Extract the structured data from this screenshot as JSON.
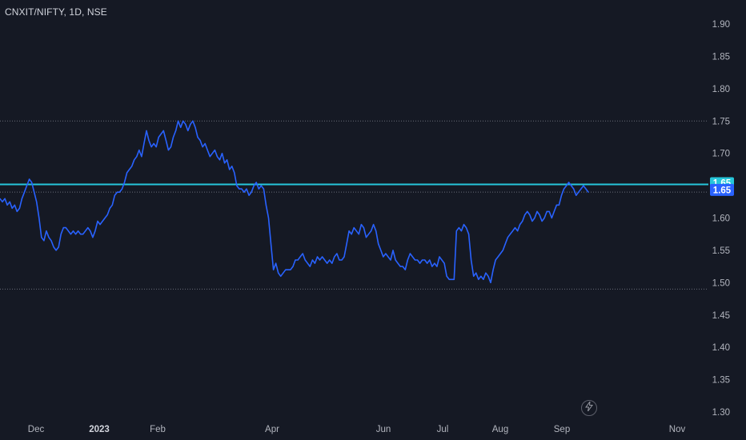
{
  "header": {
    "symbol_title": "CNXIT/NIFTY, 1D, NSE"
  },
  "colors": {
    "background": "#151924",
    "series_line": "#2962ff",
    "horizontal_line": "#26c6da",
    "price_label_bg": "#2962ff",
    "level_label_bg": "#26c6da",
    "grid_dotted": "#6a6d78",
    "axis_text": "#b2b5be"
  },
  "icons": {
    "replay_button": "lightning-bolt-icon"
  },
  "chart_data": {
    "type": "line",
    "title": "CNXIT/NIFTY, 1D, NSE",
    "xlabel": "",
    "ylabel": "",
    "ylim": [
      1.29,
      1.92
    ],
    "y_ticks": [
      "1.90",
      "1.85",
      "1.80",
      "1.75",
      "1.70",
      "1.65",
      "1.60",
      "1.55",
      "1.50",
      "1.45",
      "1.40",
      "1.35",
      "1.30"
    ],
    "x_ticks": [
      "Dec",
      "2023",
      "Feb",
      "Apr",
      "Jun",
      "Jul",
      "Aug",
      "Sep",
      "Nov"
    ],
    "grid": false,
    "dotted_levels": [
      1.75,
      1.64,
      1.49
    ],
    "horizontal_line": {
      "value": 1.652,
      "label": "1.65"
    },
    "last_price_label": "1.65",
    "series": [
      {
        "values": [
          1.63,
          1.625,
          1.63,
          1.62,
          1.625,
          1.615,
          1.62,
          1.61,
          1.615,
          1.63,
          1.64,
          1.65,
          1.66,
          1.655,
          1.64,
          1.625,
          1.6,
          1.57,
          1.565,
          1.58,
          1.57,
          1.565,
          1.555,
          1.55,
          1.555,
          1.575,
          1.585,
          1.585,
          1.58,
          1.575,
          1.58,
          1.575,
          1.58,
          1.575,
          1.575,
          1.58,
          1.585,
          1.58,
          1.57,
          1.58,
          1.595,
          1.59,
          1.595,
          1.6,
          1.605,
          1.615,
          1.62,
          1.635,
          1.64,
          1.64,
          1.645,
          1.655,
          1.67,
          1.675,
          1.68,
          1.69,
          1.695,
          1.705,
          1.695,
          1.715,
          1.735,
          1.72,
          1.71,
          1.715,
          1.71,
          1.725,
          1.73,
          1.735,
          1.72,
          1.705,
          1.71,
          1.725,
          1.735,
          1.75,
          1.74,
          1.75,
          1.745,
          1.735,
          1.745,
          1.75,
          1.74,
          1.725,
          1.72,
          1.71,
          1.715,
          1.705,
          1.695,
          1.7,
          1.705,
          1.695,
          1.69,
          1.7,
          1.685,
          1.69,
          1.675,
          1.68,
          1.67,
          1.65,
          1.645,
          1.645,
          1.64,
          1.645,
          1.635,
          1.64,
          1.65,
          1.655,
          1.645,
          1.65,
          1.645,
          1.62,
          1.6,
          1.56,
          1.52,
          1.53,
          1.515,
          1.51,
          1.515,
          1.52,
          1.52,
          1.52,
          1.525,
          1.535,
          1.535,
          1.54,
          1.545,
          1.535,
          1.53,
          1.525,
          1.535,
          1.53,
          1.54,
          1.535,
          1.54,
          1.535,
          1.53,
          1.535,
          1.53,
          1.54,
          1.545,
          1.535,
          1.535,
          1.54,
          1.56,
          1.58,
          1.575,
          1.585,
          1.58,
          1.575,
          1.59,
          1.585,
          1.57,
          1.575,
          1.58,
          1.59,
          1.58,
          1.56,
          1.55,
          1.54,
          1.545,
          1.54,
          1.535,
          1.55,
          1.535,
          1.53,
          1.525,
          1.525,
          1.52,
          1.535,
          1.545,
          1.54,
          1.535,
          1.535,
          1.53,
          1.535,
          1.535,
          1.53,
          1.535,
          1.525,
          1.53,
          1.525,
          1.54,
          1.535,
          1.53,
          1.51,
          1.505,
          1.505,
          1.505,
          1.58,
          1.585,
          1.58,
          1.59,
          1.585,
          1.575,
          1.535,
          1.51,
          1.515,
          1.505,
          1.51,
          1.505,
          1.515,
          1.51,
          1.5,
          1.52,
          1.535,
          1.54,
          1.545,
          1.55,
          1.56,
          1.57,
          1.575,
          1.58,
          1.585,
          1.58,
          1.59,
          1.595,
          1.605,
          1.61,
          1.605,
          1.595,
          1.6,
          1.61,
          1.605,
          1.595,
          1.6,
          1.61,
          1.61,
          1.6,
          1.61,
          1.62,
          1.62,
          1.635,
          1.645,
          1.65,
          1.655,
          1.65,
          1.645,
          1.635,
          1.64,
          1.645,
          1.65,
          1.645,
          1.64
        ]
      }
    ]
  }
}
